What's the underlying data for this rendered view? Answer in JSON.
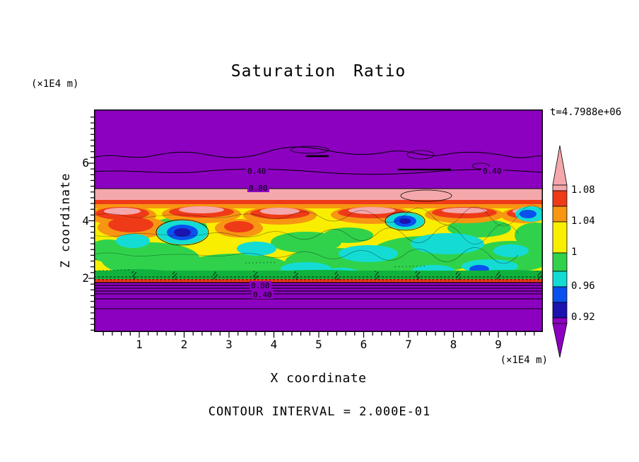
{
  "title": "Saturation Ratio",
  "time_label": "t=4.7988e+06",
  "footer_label": "CONTOUR INTERVAL = 2.000E-01",
  "x_axis": {
    "label": "X coordinate",
    "unit": "(×1E4 m)",
    "ticks": [
      1,
      2,
      3,
      4,
      5,
      6,
      7,
      8,
      9
    ]
  },
  "y_axis": {
    "label": "Z coordinate",
    "unit": "(×1E4 m)",
    "ticks": [
      2,
      4,
      6
    ]
  },
  "colorbar": {
    "labels": [
      [
        "1.08",
        65
      ],
      [
        "1.04",
        109
      ],
      [
        "1",
        153
      ],
      [
        "0.96",
        201
      ],
      [
        "0.92",
        245
      ]
    ],
    "segments": [
      [
        "pink",
        8
      ],
      [
        "red",
        22
      ],
      [
        "orange",
        22
      ],
      [
        "yellow",
        44
      ],
      [
        "green",
        26
      ],
      [
        "cyan",
        22
      ],
      [
        "blue",
        22
      ],
      [
        "navy",
        22
      ],
      [
        "purple",
        8
      ]
    ]
  },
  "chart_data": {
    "type": "contour",
    "title": "Saturation Ratio",
    "xlabel": "X coordinate",
    "ylabel": "Z coordinate",
    "x_unit": "(×1E4 m)",
    "y_unit": "(×1E4 m)",
    "time": "t=4.7988e+06",
    "x_range": [
      0,
      10
    ],
    "y_range": [
      0.1,
      7.85
    ],
    "contour_interval": 0.2,
    "line_contour_labels_shown": [
      "0.40",
      "0.80"
    ],
    "fill_levels": [
      0.92,
      0.96,
      1,
      1.04,
      1.08
    ],
    "fill_colors_top_to_bottom": [
      "pink",
      "red",
      "orange",
      "yellow",
      "green",
      "cyan",
      "blue",
      "navy",
      "purple"
    ],
    "description": "Turbulent saturation-ratio band between z≈1.8 and z≈5 (×1E4 m); saturated (purple, S<0.4) regions above and below with line contours labeled 0.40 and 0.80; warm colors (S>1) in upper band, cool blue pockets (S<0.96) embedded in green/yellow field.",
    "palette": {
      "purple": "#8c00c0",
      "navy": "#1c12b0",
      "blue": "#0a50ee",
      "cyan": "#14dcd4",
      "green": "#30d24c",
      "darkgreen": "#10b23e",
      "yellow": "#f9ee00",
      "orange": "#f79612",
      "red": "#ef3a18",
      "pink": "#f4a8ac"
    },
    "render": {
      "plotLeft": 133,
      "plotTop": 155,
      "plotW": 635,
      "plotH": 315,
      "x0": 133.5,
      "xs": 63.5,
      "yb": 475.5,
      "ys": 40.75,
      "layers": [
        [
          "r",
          "purple",
          0,
          0,
          635,
          315
        ],
        [
          "r",
          "pink",
          0,
          112,
          635,
          18
        ],
        [
          "r",
          "red",
          0,
          128,
          635,
          8
        ],
        [
          "r",
          "orange",
          0,
          134,
          635,
          10
        ],
        [
          "r",
          "yellow",
          0,
          140,
          635,
          105
        ],
        [
          "e",
          "green",
          80,
          212,
          70,
          24
        ],
        [
          "e",
          "green",
          200,
          224,
          78,
          20
        ],
        [
          "e",
          "green",
          340,
          216,
          70,
          20
        ],
        [
          "e",
          "green",
          470,
          205,
          80,
          26
        ],
        [
          "e",
          "green",
          590,
          208,
          60,
          22
        ],
        [
          "e",
          "green",
          120,
          166,
          40,
          13
        ],
        [
          "e",
          "green",
          300,
          188,
          50,
          15
        ],
        [
          "e",
          "green",
          545,
          168,
          45,
          13
        ],
        [
          "e",
          "green",
          625,
          178,
          30,
          18
        ],
        [
          "e",
          "green",
          420,
          232,
          60,
          13
        ],
        [
          "e",
          "green",
          20,
          200,
          30,
          16
        ],
        [
          "e",
          "green",
          360,
          178,
          35,
          11
        ],
        [
          "e",
          "orange",
          40,
          150,
          48,
          14
        ],
        [
          "e",
          "orange",
          152,
          148,
          56,
          13
        ],
        [
          "e",
          "orange",
          263,
          150,
          52,
          13
        ],
        [
          "e",
          "orange",
          393,
          149,
          58,
          13
        ],
        [
          "e",
          "orange",
          524,
          149,
          56,
          12
        ],
        [
          "e",
          "orange",
          608,
          150,
          32,
          11
        ],
        [
          "e",
          "orange",
          55,
          167,
          50,
          16
        ],
        [
          "e",
          "orange",
          205,
          168,
          34,
          13
        ],
        [
          "e",
          "red",
          40,
          147,
          38,
          9
        ],
        [
          "e",
          "red",
          152,
          145,
          46,
          8
        ],
        [
          "e",
          "red",
          263,
          147,
          42,
          8
        ],
        [
          "e",
          "red",
          393,
          146,
          48,
          8
        ],
        [
          "e",
          "red",
          524,
          146,
          46,
          8
        ],
        [
          "e",
          "red",
          608,
          147,
          24,
          7
        ],
        [
          "e",
          "red",
          52,
          163,
          32,
          11
        ],
        [
          "e",
          "red",
          205,
          166,
          21,
          8
        ],
        [
          "e",
          "pink",
          40,
          144,
          26,
          5
        ],
        [
          "e",
          "pink",
          152,
          142,
          32,
          5
        ],
        [
          "e",
          "pink",
          263,
          144,
          28,
          5
        ],
        [
          "e",
          "pink",
          393,
          143,
          33,
          5
        ],
        [
          "e",
          "pink",
          524,
          143,
          32,
          4
        ],
        [
          "e",
          "pink",
          608,
          144,
          16,
          4
        ],
        [
          "e",
          "cyan",
          125,
          174,
          36,
          17
        ],
        [
          "e",
          "cyan",
          440,
          158,
          27,
          12
        ],
        [
          "e",
          "cyan",
          388,
          204,
          42,
          12
        ],
        [
          "e",
          "cyan",
          500,
          190,
          52,
          15
        ],
        [
          "e",
          "cyan",
          560,
          222,
          40,
          10
        ],
        [
          "e",
          "cyan",
          300,
          226,
          36,
          10
        ],
        [
          "e",
          "cyan",
          55,
          186,
          24,
          10
        ],
        [
          "e",
          "cyan",
          618,
          148,
          22,
          11
        ],
        [
          "e",
          "cyan",
          480,
          228,
          30,
          8
        ],
        [
          "e",
          "cyan",
          230,
          197,
          28,
          10
        ],
        [
          "e",
          "cyan",
          350,
          232,
          26,
          8
        ],
        [
          "e",
          "cyan",
          590,
          200,
          25,
          9
        ],
        [
          "e",
          "blue",
          125,
          174,
          22,
          11
        ],
        [
          "e",
          "blue",
          440,
          158,
          16,
          8
        ],
        [
          "e",
          "blue",
          614,
          148,
          12,
          6
        ],
        [
          "e",
          "blue",
          545,
          226,
          14,
          6
        ],
        [
          "e",
          "navy",
          125,
          174,
          12,
          6
        ],
        [
          "e",
          "navy",
          440,
          158,
          8,
          4
        ],
        [
          "g",
          125,
          174,
          37,
          18
        ],
        [
          "g",
          440,
          158,
          28,
          13
        ],
        [
          "r",
          "darkgreen",
          0,
          228,
          635,
          12
        ],
        [
          "e",
          "darkgreen",
          60,
          234,
          60,
          8
        ],
        [
          "e",
          "darkgreen",
          180,
          236,
          70,
          7
        ],
        [
          "e",
          "darkgreen",
          320,
          234,
          80,
          7
        ],
        [
          "e",
          "darkgreen",
          460,
          236,
          70,
          7
        ],
        [
          "e",
          "darkgreen",
          585,
          234,
          60,
          7
        ],
        [
          "r",
          "red",
          0,
          240,
          635,
          5
        ],
        [
          "p",
          "M0,68 C25,60 50,72 80,66 S130,58 160,64 S215,70 245,60 S300,52 330,58 S385,66 415,60 S465,70 495,64 S555,60 585,66 S620,64 635,66",
          1,
          1
        ],
        [
          "p",
          "M0,88 C50,84 100,93 150,88 S250,83 310,88 S420,93 480,88 S575,85 635,89",
          1,
          1
        ],
        [
          "g",
          305,
          57,
          27,
          5
        ],
        [
          "g",
          462,
          64,
          19,
          6
        ],
        [
          "g",
          547,
          80,
          12,
          4
        ],
        [
          "g",
          470,
          122,
          36,
          8
        ],
        [
          "l",
          300,
          66,
          332,
          66,
          2.5,
          1
        ],
        [
          "l",
          430,
          85,
          505,
          85,
          2.2,
          1
        ],
        [
          "l",
          0,
          112,
          635,
          112,
          1.1,
          1
        ],
        [
          "p",
          "M0,150 q20,-5 40,0 t40,2 t40,-3 t40,3 t40,-2 t40,2 t40,-3 t40,3 t40,-2 t40,2 t40,-3 t40,3 t40,-2 t40,2 t40,-2 t40,1",
          0.6,
          0.5
        ],
        [
          "p",
          "M0,178 q20,4 40,0 t40,-2 t40,3 t40,-3 t40,2 t40,-2 t40,3 t40,-3 t40,2 t40,-2 t40,3 t40,-3 t40,2 t40,-2 t40,-1",
          0.6,
          0.5
        ],
        [
          "p",
          "M0,205 q20,-4 40,0 t40,2 t40,-2 t40,2 t40,-2 t40,2 t40,-2 t40,2 t40,-2 t40,2 t40,-2 t40,2 t40,-2 t40,2 t40,-1",
          0.6,
          0.5
        ],
        [
          "l",
          0,
          245,
          635,
          245,
          1.2,
          1
        ],
        [
          "l",
          0,
          249,
          635,
          249,
          1,
          1
        ],
        [
          "l",
          0,
          253,
          635,
          253,
          1,
          1
        ],
        [
          "l",
          0,
          257,
          635,
          257,
          1,
          1
        ],
        [
          "l",
          0,
          261,
          635,
          261,
          1,
          1
        ],
        [
          "l",
          0,
          268,
          635,
          268,
          1,
          1
        ],
        [
          "l",
          0,
          282,
          635,
          282,
          0.9,
          0.9
        ],
        [
          "d",
          237
        ],
        [
          "d",
          241
        ],
        [
          "t",
          "0.40",
          217,
          88
        ],
        [
          "t",
          "0.80",
          219,
          112
        ],
        [
          "t",
          "0.40",
          550,
          88
        ],
        [
          "t",
          "0.80",
          222,
          250
        ],
        [
          "t",
          "0.40",
          225,
          263
        ]
      ]
    }
  }
}
